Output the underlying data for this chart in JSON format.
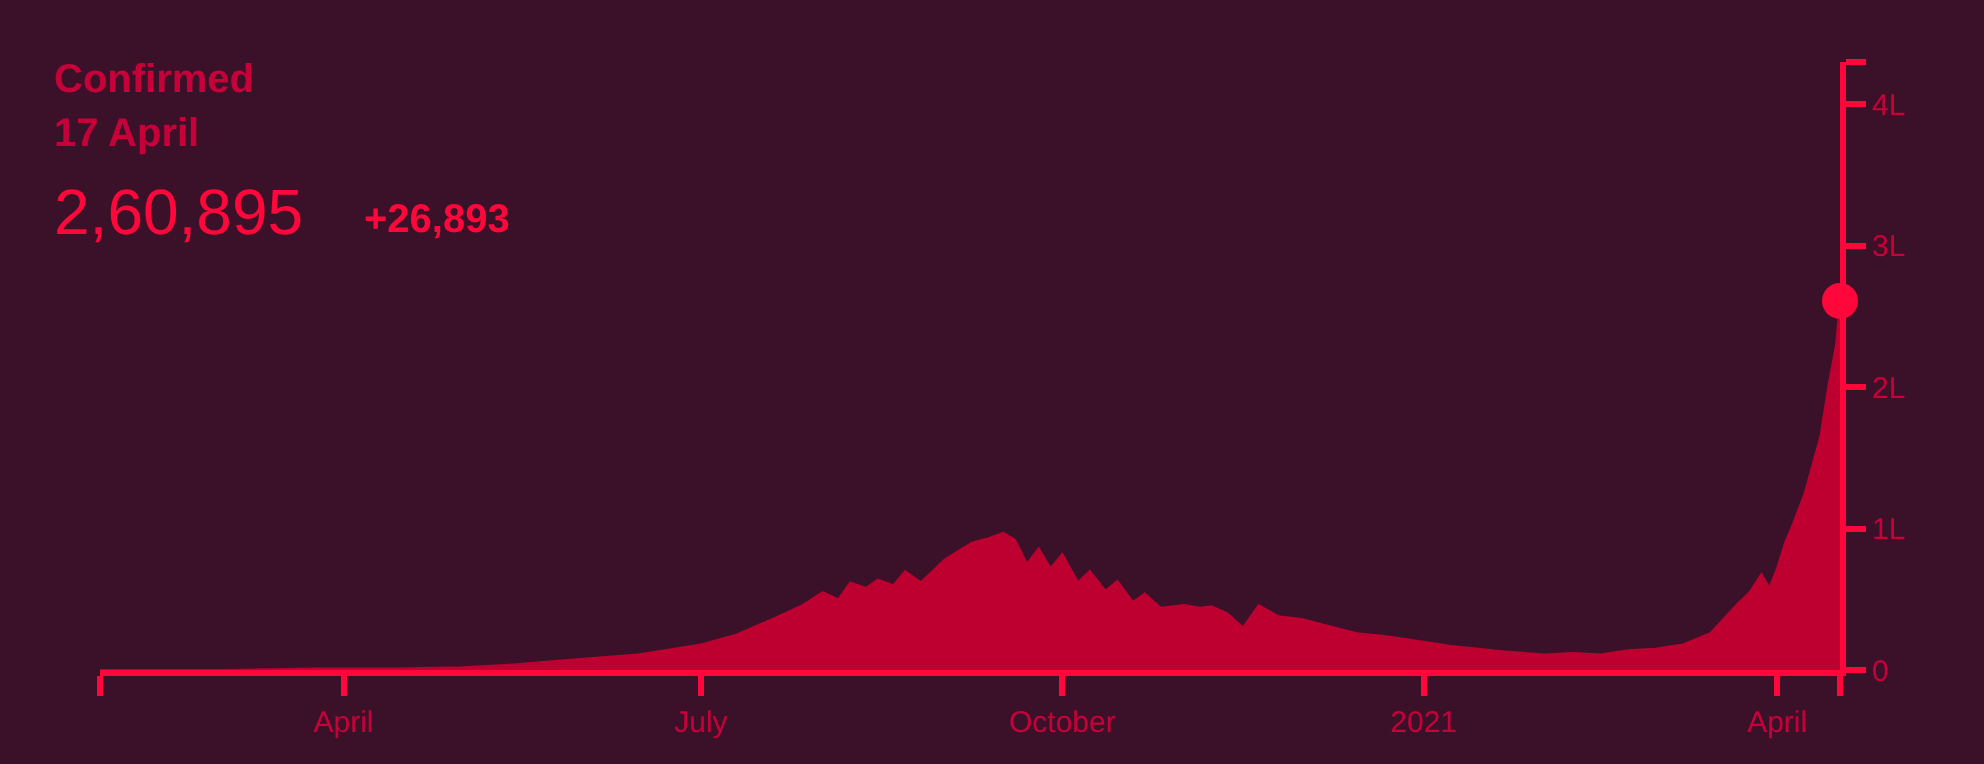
{
  "chart_data": {
    "type": "area",
    "title": "Confirmed",
    "subtitle": "17 April",
    "annotations": [
      "2,60,895",
      "+26,893"
    ],
    "series": [
      {
        "color": "#bd0030",
        "x": [
          "2020-01-30",
          "2020-03-01",
          "2020-03-25",
          "2020-04-15",
          "2020-05-01",
          "2020-05-15",
          "2020-06-01",
          "2020-06-15",
          "2020-07-01",
          "2020-07-10",
          "2020-07-20",
          "2020-07-27",
          "2020-08-01",
          "2020-08-05",
          "2020-08-08",
          "2020-08-12",
          "2020-08-15",
          "2020-08-19",
          "2020-08-22",
          "2020-08-26",
          "2020-09-01",
          "2020-09-05",
          "2020-09-08",
          "2020-09-12",
          "2020-09-16",
          "2020-09-19",
          "2020-09-22",
          "2020-09-25",
          "2020-09-28",
          "2020-10-01",
          "2020-10-05",
          "2020-10-08",
          "2020-10-12",
          "2020-10-15",
          "2020-10-19",
          "2020-10-22",
          "2020-10-26",
          "2020-11-01",
          "2020-11-05",
          "2020-11-08",
          "2020-11-12",
          "2020-11-16",
          "2020-11-20",
          "2020-11-25",
          "2020-12-01",
          "2020-12-08",
          "2020-12-15",
          "2020-12-22",
          "2021-01-01",
          "2021-01-08",
          "2021-01-15",
          "2021-01-22",
          "2021-02-01",
          "2021-02-08",
          "2021-02-15",
          "2021-02-22",
          "2021-03-01",
          "2021-03-08",
          "2021-03-15",
          "2021-03-19",
          "2021-03-22",
          "2021-03-25",
          "2021-03-28",
          "2021-03-30",
          "2021-04-01",
          "2021-04-03",
          "2021-04-05",
          "2021-04-08",
          "2021-04-10",
          "2021-04-12",
          "2021-04-14",
          "2021-04-16",
          "2021-04-17"
        ],
        "values": [
          0,
          0,
          0.01,
          0.01,
          0.02,
          0.04,
          0.08,
          0.11,
          0.18,
          0.25,
          0.37,
          0.46,
          0.55,
          0.5,
          0.62,
          0.58,
          0.64,
          0.6,
          0.7,
          0.62,
          0.78,
          0.85,
          0.9,
          0.93,
          0.97,
          0.92,
          0.75,
          0.86,
          0.72,
          0.82,
          0.62,
          0.7,
          0.56,
          0.63,
          0.48,
          0.54,
          0.44,
          0.46,
          0.44,
          0.45,
          0.4,
          0.3,
          0.46,
          0.38,
          0.36,
          0.31,
          0.26,
          0.24,
          0.2,
          0.17,
          0.15,
          0.13,
          0.11,
          0.12,
          0.11,
          0.14,
          0.15,
          0.18,
          0.26,
          0.38,
          0.47,
          0.55,
          0.68,
          0.58,
          0.72,
          0.9,
          1.03,
          1.25,
          1.45,
          1.65,
          2.0,
          2.3,
          2.61
        ]
      },
      {
        "type": "scatter",
        "color": "#ff073a",
        "marker": "circle",
        "x": [
          "2021-04-17"
        ],
        "values": [
          2.61
        ]
      }
    ],
    "xlim": [
      "2020-01-30",
      "2021-04-17"
    ],
    "xticks": [
      {
        "value": "2020-01-30",
        "label": null
      },
      {
        "value": "2020-04-01",
        "label": "April"
      },
      {
        "value": "2020-07-01",
        "label": "July"
      },
      {
        "value": "2020-10-01",
        "label": "October"
      },
      {
        "value": "2021-01-01",
        "label": "2021"
      },
      {
        "value": "2021-04-01",
        "label": "April"
      },
      {
        "value": "2021-04-17",
        "label": null
      }
    ],
    "ylim": [
      0,
      4.3
    ],
    "yticks": [
      0,
      {
        "value": 1,
        "label": "1L"
      },
      {
        "value": 2,
        "label": "2L"
      },
      {
        "value": 3,
        "label": "3L"
      },
      {
        "value": 4,
        "label": "4L"
      },
      {
        "value": 4.3,
        "label": null
      }
    ],
    "grid": false
  }
}
